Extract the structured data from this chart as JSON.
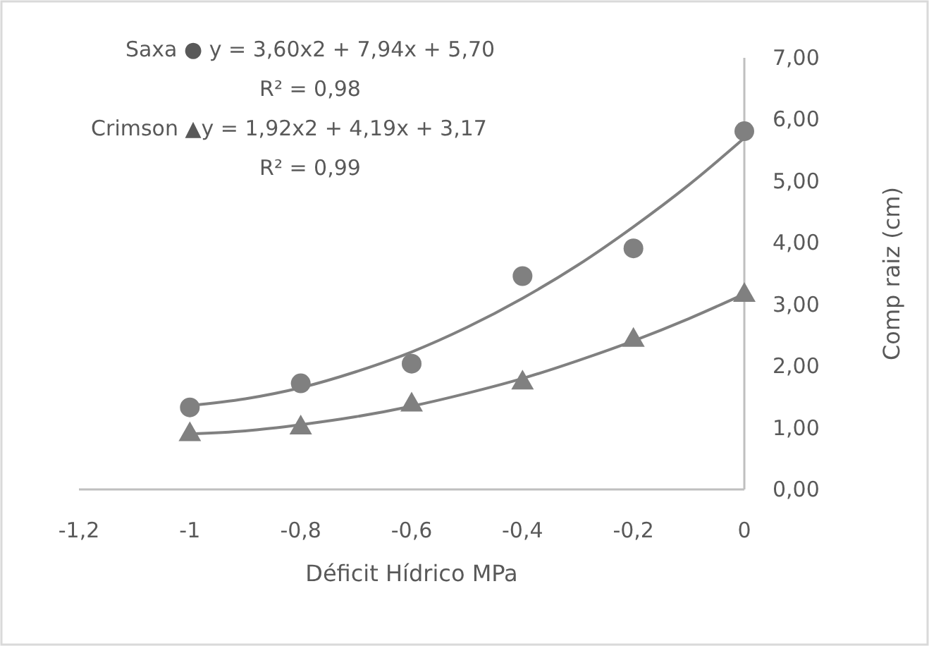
{
  "chart_data": {
    "type": "scatter",
    "xlabel": "Déficit Hídrico MPa",
    "ylabel": "Comp raiz (cm)",
    "xlim": [
      -1.2,
      0
    ],
    "xticks": [
      {
        "value": -1.2,
        "label": "-1,2"
      },
      {
        "value": -1,
        "label": "-1"
      },
      {
        "value": -0.8,
        "label": "-0,8"
      },
      {
        "value": -0.6,
        "label": "-0,6"
      },
      {
        "value": -0.4,
        "label": "-0,4"
      },
      {
        "value": -0.2,
        "label": "-0,2"
      },
      {
        "value": 0,
        "label": "0"
      }
    ],
    "ylim": [
      0,
      7
    ],
    "yticks": [
      {
        "value": 0,
        "label": "0,00"
      },
      {
        "value": 1,
        "label": "1,00"
      },
      {
        "value": 2,
        "label": "2,00"
      },
      {
        "value": 3,
        "label": "3,00"
      },
      {
        "value": 4,
        "label": "4,00"
      },
      {
        "value": 5,
        "label": "5,00"
      },
      {
        "value": 6,
        "label": "6,00"
      },
      {
        "value": 7,
        "label": "7,00"
      }
    ],
    "grid": false,
    "x": [
      -1,
      -0.8,
      -0.6,
      -0.4,
      -0.2,
      0
    ],
    "series": [
      {
        "marker": "circle",
        "color": "#808080",
        "values": [
          1.33,
          1.72,
          2.04,
          3.46,
          3.91,
          5.81
        ]
      },
      {
        "marker": "triangle",
        "color": "#808080",
        "values": [
          0.92,
          1.03,
          1.4,
          1.76,
          2.45,
          3.18
        ]
      },
      {
        "type": "line",
        "marker": "none",
        "color": "#808080",
        "x": [
          -1,
          -0.9,
          -0.8,
          -0.7,
          -0.6,
          -0.5,
          -0.4,
          -0.3,
          -0.2,
          -0.1,
          0
        ],
        "values": [
          1.36,
          1.47,
          1.65,
          1.91,
          2.23,
          2.63,
          3.1,
          3.64,
          4.26,
          4.94,
          5.7
        ]
      },
      {
        "type": "line",
        "marker": "none",
        "color": "#808080",
        "x": [
          -1,
          -0.9,
          -0.8,
          -0.7,
          -0.6,
          -0.5,
          -0.4,
          -0.3,
          -0.2,
          -0.1,
          0
        ],
        "values": [
          0.9,
          0.95,
          1.05,
          1.18,
          1.35,
          1.56,
          1.8,
          2.09,
          2.41,
          2.77,
          3.17
        ]
      }
    ],
    "annotations": [
      "Saxa ● y = 3,60x2 + 7,94x + 5,70",
      "R² = 0,98",
      "Crimson ▲y = 1,92x2 + 4,19x + 3,17",
      "R² = 0,99"
    ]
  }
}
